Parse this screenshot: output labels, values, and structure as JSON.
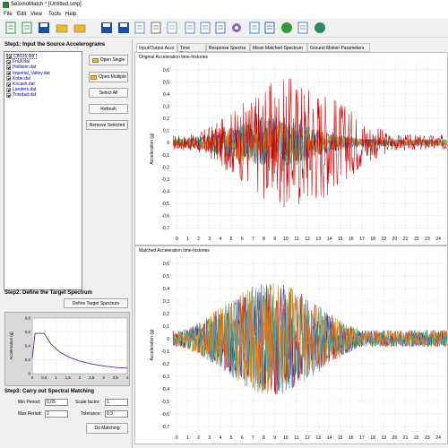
{
  "window": {
    "title": "SeismoMatch * [Untitled.smp]"
  },
  "menu": [
    "File",
    "Edit",
    "View",
    "Tools",
    "Help"
  ],
  "toolbar": {
    "icons": [
      "new-icon",
      "open-icon",
      "save-icon",
      "open-folder-icon",
      "open-folder-2-icon",
      "save-icon",
      "save-as-icon",
      "document-icon",
      "print-icon",
      "print-preview-icon",
      "copy-icon",
      "report-icon",
      "copy-2-icon",
      "settings-icon",
      "export-icon",
      "layers-icon",
      "help-icon",
      "link-icon",
      "web-icon"
    ]
  },
  "step1": {
    "title": "Step1: Input the Source Accelerograms",
    "files": [
      "ChiChi.dat",
      "Friuli.dat",
      "Hollister.dat",
      "Imperial_Valley.dat",
      "Kobe.dat",
      "Kocaeli.dat",
      "Landers.dat",
      "Trinidad.dat"
    ],
    "open_single": "Open Single",
    "open_multiple": "Open Multiple",
    "select_all": "Select All",
    "refresh": "Refresh",
    "remove_selected": "Remove Selected"
  },
  "step2": {
    "title": "Step2: Define the Target Spectrum",
    "define_button": "Define Target Spectrum",
    "preview": {
      "ylabel": "Acceleration (g)",
      "yticks": [
        "0,8",
        "0,6",
        "0,4",
        "0,2",
        "0"
      ],
      "xticks": [
        "0",
        "0,5",
        "1",
        "1,5",
        "2",
        "2,5",
        "3",
        "3,5",
        "4"
      ],
      "spectrum": [
        [
          0,
          0.22
        ],
        [
          0.12,
          0.58
        ],
        [
          0.5,
          0.58
        ],
        [
          0.8,
          0.42
        ],
        [
          1.2,
          0.3
        ],
        [
          1.6,
          0.23
        ],
        [
          2,
          0.18
        ],
        [
          2.5,
          0.14
        ],
        [
          3,
          0.11
        ],
        [
          3.5,
          0.09
        ],
        [
          4,
          0.08
        ]
      ]
    }
  },
  "step3": {
    "title": "Step3: Carry out Spectral Matching",
    "min_period_label": "Min Period:",
    "min_period": "0,05",
    "max_period_label": "Max Period:",
    "max_period": "2",
    "scale_factor_label": "Scale factor:",
    "scale_factor": "1",
    "tolerance_label": "Tolerance:",
    "tolerance": "0,3",
    "do_matching": "Do Matching"
  },
  "tabs": [
    "Input/Output Accs",
    "Time Series",
    "Response Spectra",
    "Mean Matched Spectrum",
    "Ground Motion Parameters"
  ],
  "chart_data": [
    {
      "type": "line",
      "title": "Original Acceleration time-histories",
      "ylabel": "Acceleration (g)",
      "yticks": [
        "0,6",
        "0,5",
        "0,4",
        "0,3",
        "0,2",
        "0,1",
        "0",
        "-0,1",
        "-0,2",
        "-0,3",
        "-0,4",
        "-0,5",
        "-0,6",
        "-0,7"
      ],
      "xticks": [
        "0",
        "1",
        "2",
        "3",
        "4",
        "5",
        "6",
        "7",
        "8",
        "9",
        "10",
        "11",
        "12",
        "13",
        "14",
        "15",
        "16",
        "17",
        "18",
        "19",
        "20",
        "21",
        "22",
        "23",
        "24"
      ],
      "ylim": [
        -0.75,
        0.65
      ],
      "xlim": [
        0,
        25
      ],
      "grid": true,
      "series_colors": [
        "#c00000",
        "#e08020",
        "#2aa3a3",
        "#4040a0",
        "#a0a030"
      ]
    },
    {
      "type": "line",
      "title": "Matched Acceleration time-histories",
      "ylabel": "Acceleration (g)",
      "yticks": [
        "0,6",
        "0,5",
        "0,4",
        "0,3",
        "0,2",
        "0,1",
        "0",
        "-0,1",
        "-0,2",
        "-0,3",
        "-0,4",
        "-0,5",
        "-0,6",
        "-0,7"
      ],
      "xticks": [
        "0",
        "1",
        "2",
        "3",
        "4",
        "5",
        "6",
        "7",
        "8",
        "9",
        "10",
        "11",
        "12",
        "13",
        "14",
        "15",
        "16",
        "17",
        "18",
        "19",
        "20",
        "21",
        "22",
        "23",
        "24"
      ],
      "ylim": [
        -0.75,
        0.65
      ],
      "xlim": [
        0,
        25
      ],
      "grid": true,
      "series_colors": [
        "#c00000",
        "#e08020",
        "#2aa3a3",
        "#4040a0",
        "#a0a030"
      ]
    }
  ]
}
